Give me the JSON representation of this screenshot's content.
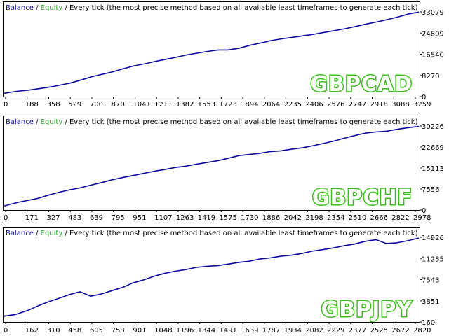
{
  "header": {
    "balance": "Balance",
    "separator": " / ",
    "equity": "Equity",
    "description": " / Every tick (the most precise method based on all available least timeframes to generate each tick)"
  },
  "colors": {
    "balance": "#1515b0",
    "equity": "#2ea02e",
    "line": "#0a0aa0",
    "watermark_stroke": "#3cbf1c",
    "border": "#000000"
  },
  "chart_data": [
    {
      "type": "line",
      "symbol": "GBPCAD",
      "yticks": [
        "33079",
        "24809",
        "16540",
        "8270",
        "0"
      ],
      "ylim": [
        0,
        33079
      ],
      "xticks": [
        "0",
        "188",
        "358",
        "529",
        "700",
        "870",
        "1041",
        "1211",
        "1382",
        "1553",
        "1723",
        "1894",
        "2064",
        "2235",
        "2406",
        "2576",
        "2747",
        "2918",
        "3088",
        "3259"
      ],
      "xmax": 3340,
      "series": [
        {
          "name": "Balance",
          "points": [
            [
              0,
              200
            ],
            [
              100,
              1000
            ],
            [
              200,
              1500
            ],
            [
              300,
              2200
            ],
            [
              400,
              3000
            ],
            [
              529,
              4300
            ],
            [
              600,
              5300
            ],
            [
              700,
              6800
            ],
            [
              800,
              8000
            ],
            [
              870,
              8800
            ],
            [
              950,
              10000
            ],
            [
              1041,
              11200
            ],
            [
              1150,
              12300
            ],
            [
              1211,
              13000
            ],
            [
              1300,
              13900
            ],
            [
              1382,
              14700
            ],
            [
              1470,
              15700
            ],
            [
              1553,
              16400
            ],
            [
              1640,
              17100
            ],
            [
              1723,
              17700
            ],
            [
              1800,
              17700
            ],
            [
              1894,
              18400
            ],
            [
              1980,
              19600
            ],
            [
              2064,
              20500
            ],
            [
              2150,
              21500
            ],
            [
              2235,
              22200
            ],
            [
              2320,
              22800
            ],
            [
              2406,
              23400
            ],
            [
              2490,
              24000
            ],
            [
              2576,
              24800
            ],
            [
              2660,
              25500
            ],
            [
              2747,
              26300
            ],
            [
              2830,
              27200
            ],
            [
              2918,
              28200
            ],
            [
              3000,
              29000
            ],
            [
              3088,
              30000
            ],
            [
              3170,
              31000
            ],
            [
              3259,
              32300
            ],
            [
              3340,
              33000
            ]
          ]
        }
      ]
    },
    {
      "type": "line",
      "symbol": "GBPCHF",
      "yticks": [
        "30226",
        "22669",
        "15113",
        "7556",
        "0"
      ],
      "ylim": [
        0,
        30226
      ],
      "xticks": [
        "0",
        "171",
        "327",
        "483",
        "639",
        "795",
        "951",
        "1107",
        "1263",
        "1419",
        "1575",
        "1730",
        "1886",
        "2042",
        "2198",
        "2354",
        "2510",
        "2666",
        "2822",
        "2978"
      ],
      "xmax": 3060,
      "series": [
        {
          "name": "Balance",
          "points": [
            [
              0,
              500
            ],
            [
              100,
              1800
            ],
            [
              171,
              2500
            ],
            [
              250,
              3300
            ],
            [
              327,
              4500
            ],
            [
              400,
              5500
            ],
            [
              483,
              6500
            ],
            [
              560,
              7200
            ],
            [
              639,
              8200
            ],
            [
              720,
              9200
            ],
            [
              795,
              10200
            ],
            [
              870,
              11000
            ],
            [
              951,
              11800
            ],
            [
              1030,
              12600
            ],
            [
              1107,
              13400
            ],
            [
              1180,
              14000
            ],
            [
              1263,
              14800
            ],
            [
              1340,
              15300
            ],
            [
              1419,
              16000
            ],
            [
              1500,
              16700
            ],
            [
              1575,
              17300
            ],
            [
              1650,
              18200
            ],
            [
              1730,
              19200
            ],
            [
              1800,
              19600
            ],
            [
              1886,
              20100
            ],
            [
              1960,
              20700
            ],
            [
              2042,
              21000
            ],
            [
              2120,
              21600
            ],
            [
              2198,
              22100
            ],
            [
              2280,
              22900
            ],
            [
              2354,
              23700
            ],
            [
              2430,
              24600
            ],
            [
              2510,
              25700
            ],
            [
              2590,
              26700
            ],
            [
              2666,
              27600
            ],
            [
              2740,
              28000
            ],
            [
              2822,
              28300
            ],
            [
              2900,
              29000
            ],
            [
              2978,
              29600
            ],
            [
              3060,
              30100
            ]
          ]
        }
      ]
    },
    {
      "type": "line",
      "symbol": "GBPJPY",
      "yticks": [
        "14926",
        "11235",
        "7543",
        "3851",
        "160"
      ],
      "ylim": [
        160,
        14926
      ],
      "xticks": [
        "0",
        "162",
        "310",
        "458",
        "605",
        "753",
        "901",
        "1048",
        "1196",
        "1344",
        "1491",
        "1639",
        "1787",
        "1934",
        "2082",
        "2229",
        "2377",
        "2525",
        "2672",
        "2820"
      ],
      "xmax": 2900,
      "series": [
        {
          "name": "Balance",
          "points": [
            [
              0,
              700
            ],
            [
              80,
              1000
            ],
            [
              162,
              1700
            ],
            [
              240,
              2600
            ],
            [
              310,
              3300
            ],
            [
              380,
              3900
            ],
            [
              458,
              4600
            ],
            [
              530,
              5100
            ],
            [
              605,
              4300
            ],
            [
              680,
              4700
            ],
            [
              753,
              5300
            ],
            [
              830,
              5900
            ],
            [
              901,
              6700
            ],
            [
              970,
              7200
            ],
            [
              1048,
              7900
            ],
            [
              1120,
              8400
            ],
            [
              1196,
              8800
            ],
            [
              1270,
              9100
            ],
            [
              1344,
              9500
            ],
            [
              1420,
              9700
            ],
            [
              1491,
              9800
            ],
            [
              1570,
              10100
            ],
            [
              1639,
              10400
            ],
            [
              1710,
              10600
            ],
            [
              1787,
              11000
            ],
            [
              1860,
              11200
            ],
            [
              1934,
              11500
            ],
            [
              2010,
              11700
            ],
            [
              2082,
              12000
            ],
            [
              2150,
              12400
            ],
            [
              2229,
              12700
            ],
            [
              2300,
              13000
            ],
            [
              2377,
              13400
            ],
            [
              2450,
              13700
            ],
            [
              2525,
              14200
            ],
            [
              2600,
              14500
            ],
            [
              2672,
              13800
            ],
            [
              2740,
              13900
            ],
            [
              2820,
              14300
            ],
            [
              2900,
              14800
            ]
          ]
        }
      ]
    }
  ]
}
